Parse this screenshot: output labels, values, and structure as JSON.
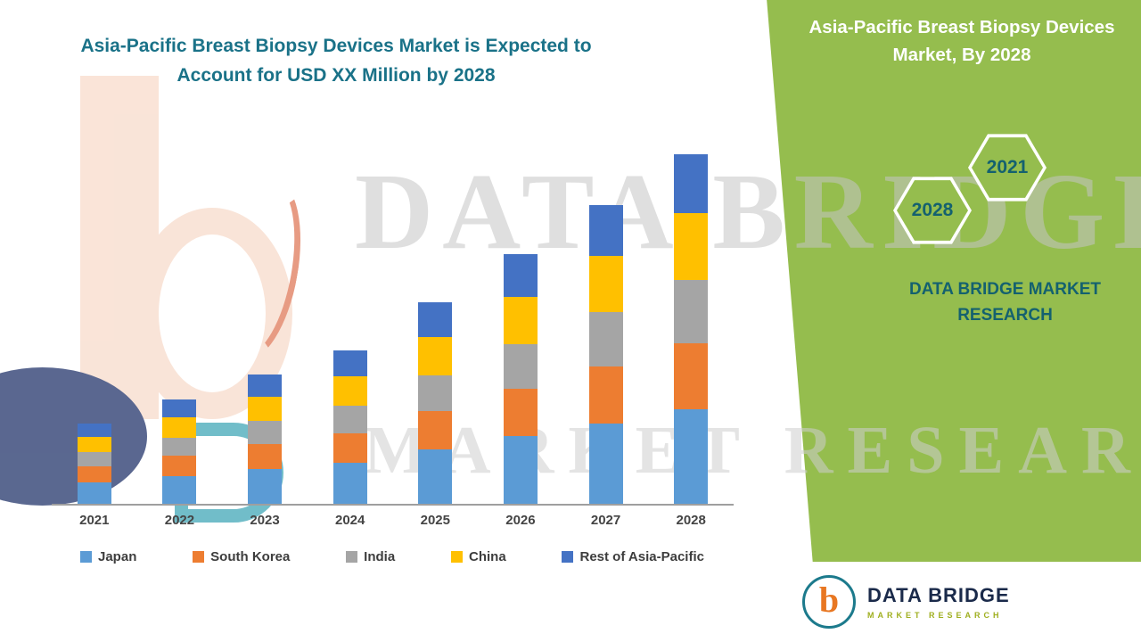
{
  "theme": {
    "panel_green": "#95BD4E",
    "title_teal": "#1A7288",
    "hex_text_teal": "#14616F",
    "footer_navy": "#1A2A4A",
    "tagline_green": "#9FAF1F"
  },
  "left_title": "Asia-Pacific Breast Biopsy Devices Market is Expected to Account for USD XX Million by 2028",
  "right_panel": {
    "title": "Asia-Pacific Breast Biopsy Devices Market, By 2028",
    "hexagons": [
      {
        "label": "2028"
      },
      {
        "label": "2021"
      }
    ],
    "brand_text": "DATA BRIDGE MARKET RESEARCH"
  },
  "watermark": {
    "line1": "DATA BRIDGE",
    "line2": "MARKET RESEARCH"
  },
  "footer_logo": {
    "brand": "DATA BRIDGE",
    "tagline": "MARKET RESEARCH",
    "mark": "b"
  },
  "chart_data": {
    "type": "bar",
    "stacked": true,
    "title": "Asia-Pacific Breast Biopsy Devices Market is Expected to Account for USD XX Million by 2028",
    "categories": [
      "2021",
      "2022",
      "2023",
      "2024",
      "2025",
      "2026",
      "2027",
      "2028"
    ],
    "series": [
      {
        "name": "Japan",
        "color": "#5B9BD5",
        "values": [
          6.0,
          7.7,
          9.6,
          11.3,
          14.9,
          18.5,
          22.1,
          25.9
        ]
      },
      {
        "name": "South Korea",
        "color": "#ED7D31",
        "values": [
          4.2,
          5.4,
          6.7,
          8.0,
          10.5,
          13.0,
          15.6,
          18.2
        ]
      },
      {
        "name": "India",
        "color": "#A5A5A5",
        "values": [
          4.0,
          5.1,
          6.4,
          7.6,
          9.9,
          12.3,
          14.8,
          17.3
        ]
      },
      {
        "name": "China",
        "color": "#FFC000",
        "values": [
          4.2,
          5.4,
          6.7,
          8.0,
          10.5,
          13.0,
          15.6,
          18.2
        ]
      },
      {
        "name": "Rest of Asia-Pacific",
        "color": "#4472C4",
        "values": [
          3.6,
          4.9,
          6.1,
          7.1,
          9.4,
          11.6,
          13.9,
          16.3
        ]
      }
    ],
    "ylim": [
      0,
      110
    ],
    "y_axis_visible": false,
    "gridlines": false,
    "value_labels": false,
    "legend_position": "bottom"
  }
}
